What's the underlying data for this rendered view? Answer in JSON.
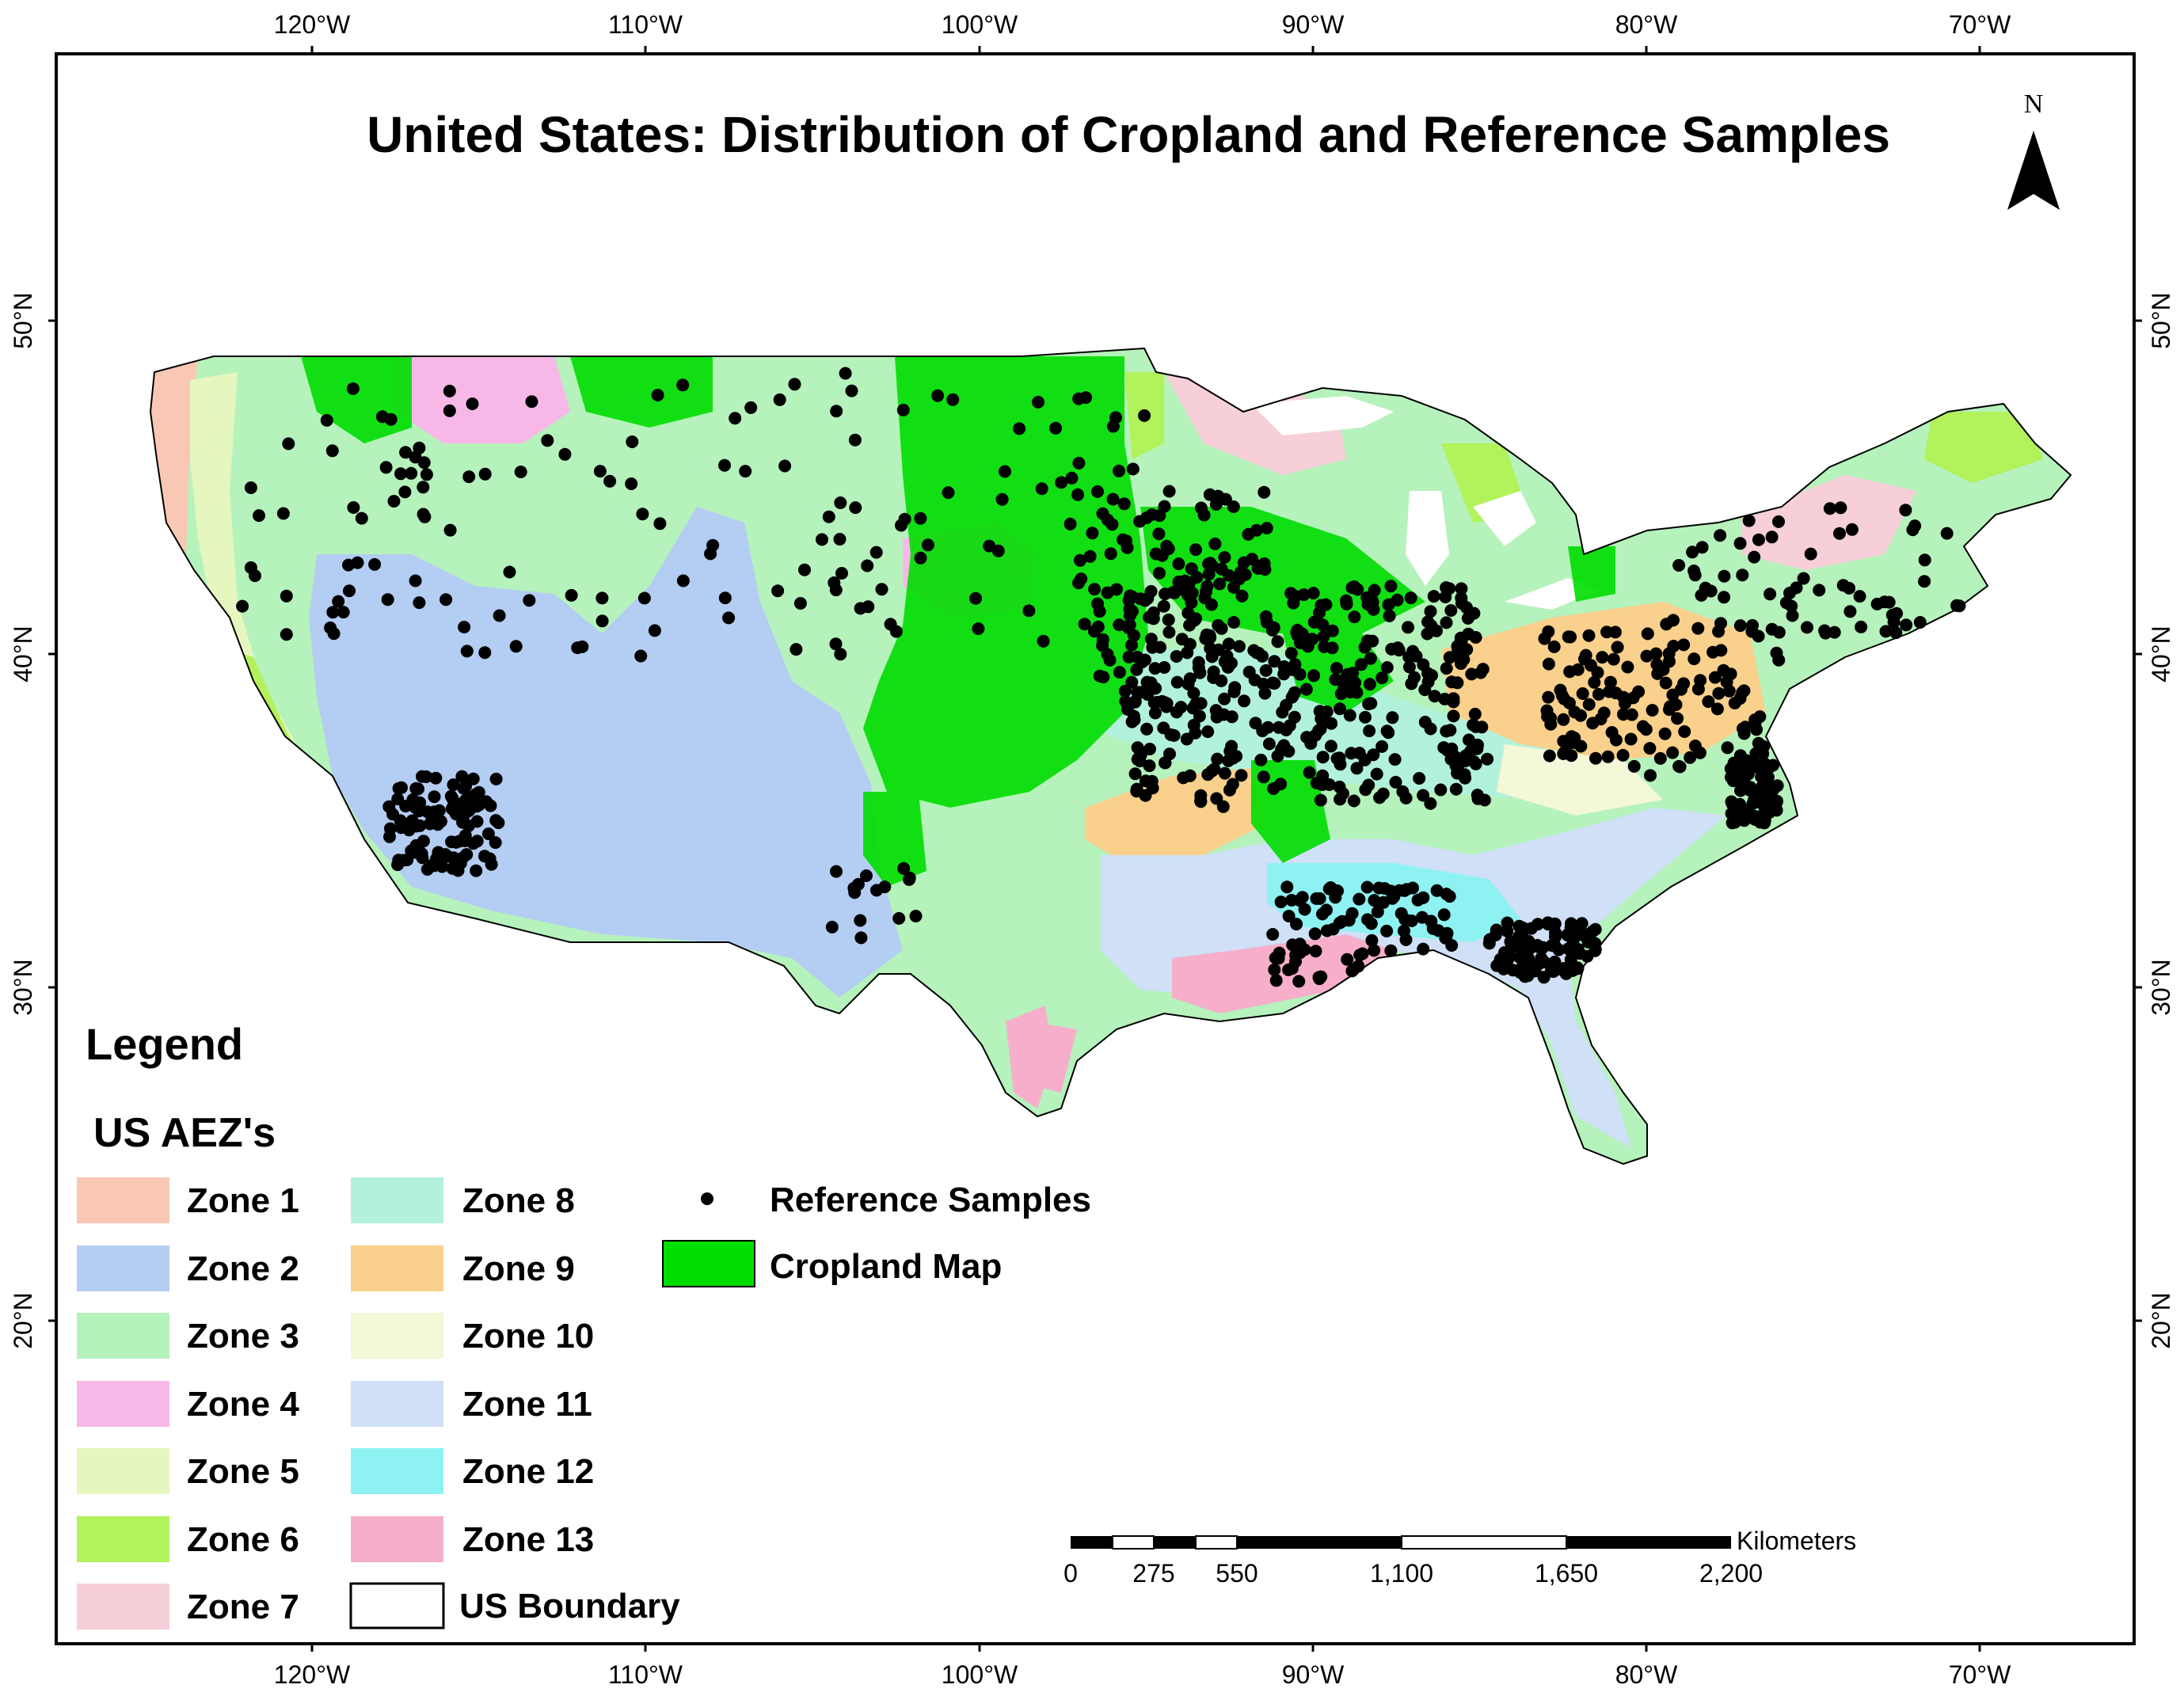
{
  "title": "United States: Distribution of Cropland and Reference Samples",
  "north_label": "N",
  "graticule": {
    "longitudes": [
      "120°W",
      "110°W",
      "100°W",
      "90°W",
      "80°W",
      "70°W"
    ],
    "latitudes": [
      "50°N",
      "40°N",
      "30°N",
      "20°N"
    ]
  },
  "legend": {
    "heading": "Legend",
    "subheading": "US AEZ's",
    "zones": [
      {
        "label": "Zone 1",
        "color": "#f9c8b4"
      },
      {
        "label": "Zone 2",
        "color": "#b4cdf2"
      },
      {
        "label": "Zone 3",
        "color": "#b6f2bc"
      },
      {
        "label": "Zone 4",
        "color": "#f7b8e8"
      },
      {
        "label": "Zone 5",
        "color": "#e5f7be"
      },
      {
        "label": "Zone 6",
        "color": "#b2f25a"
      },
      {
        "label": "Zone 7",
        "color": "#f7cfd8"
      },
      {
        "label": "Zone 8",
        "color": "#b2f2dc"
      },
      {
        "label": "Zone 9",
        "color": "#f9d08c"
      },
      {
        "label": "Zone 10",
        "color": "#f4f7d8"
      },
      {
        "label": "Zone 11",
        "color": "#cfe0f7"
      },
      {
        "label": "Zone 12",
        "color": "#8ef2f2"
      },
      {
        "label": "Zone 13",
        "color": "#f7aecb"
      }
    ],
    "boundary_label": "US Boundary",
    "samples_label": "Reference Samples",
    "cropland_label": "Cropland Map",
    "cropland_color": "#00dd00"
  },
  "scale_bar": {
    "unit": "Kilometers",
    "labels": [
      "0",
      "275",
      "550",
      "1,100",
      "1,650",
      "2,200"
    ]
  }
}
